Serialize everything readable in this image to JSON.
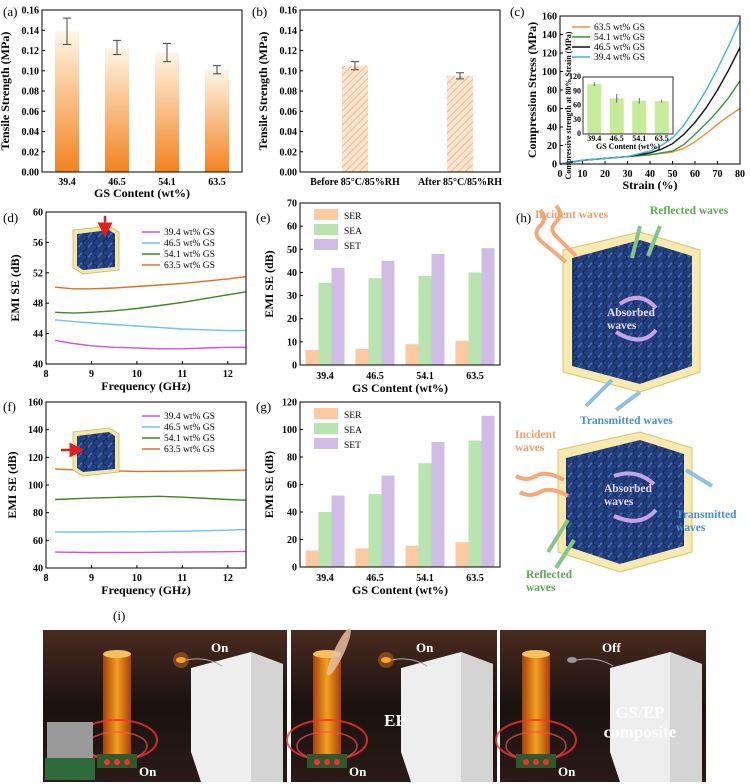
{
  "panel_labels": {
    "a": "(a)",
    "b": "(b)",
    "c": "(c)",
    "d": "(d)",
    "e": "(e)",
    "f": "(f)",
    "g": "(g)",
    "h": "(h)",
    "i": "(i)"
  },
  "colors": {
    "orange": "#f08a3a",
    "green": "#2e9a2e",
    "black": "#111111",
    "sky": "#3fb4e8",
    "purple": "#cc55dd",
    "light_blue": "#6fc3ee",
    "dark_green": "#3a8a1a",
    "dark_orange": "#e0701e",
    "ser": "#fcc9a0",
    "sea": "#b8e4b0",
    "set": "#cfbde6"
  },
  "chart_data": [
    {
      "id": "a",
      "type": "bar",
      "title": "",
      "categories": [
        "39.4",
        "46.5",
        "54.1",
        "63.5"
      ],
      "values": [
        0.139,
        0.123,
        0.118,
        0.101
      ],
      "errors": [
        0.013,
        0.007,
        0.009,
        0.004
      ],
      "xlabel": "GS Content (wt%)",
      "ylabel": "Tensile Strength (MPa)",
      "ylim": [
        0,
        0.16
      ],
      "yticks": [
        "0.00",
        "0.02",
        "0.04",
        "0.06",
        "0.08",
        "0.10",
        "0.12",
        "0.14",
        "0.16"
      ]
    },
    {
      "id": "b",
      "type": "bar",
      "title": "",
      "categories": [
        "Before 85°C/85%RH",
        "After 85°C/85%RH"
      ],
      "values": [
        0.105,
        0.095
      ],
      "errors": [
        0.004,
        0.003
      ],
      "xlabel": "",
      "ylabel": "Tensile Strength (MPa)",
      "ylim": [
        0,
        0.16
      ],
      "yticks": [
        "0.00",
        "0.02",
        "0.04",
        "0.06",
        "0.08",
        "0.10",
        "0.12",
        "0.14",
        "0.16"
      ]
    },
    {
      "id": "c",
      "type": "line",
      "title": "",
      "xlabel": "Strain (%)",
      "ylabel": "Compression Stress (MPa)",
      "xlim": [
        0,
        80
      ],
      "ylim": [
        0,
        160
      ],
      "xticks": [
        "0",
        "10",
        "20",
        "30",
        "40",
        "50",
        "60",
        "70",
        "80"
      ],
      "yticks": [
        "0",
        "20",
        "40",
        "60",
        "80",
        "100",
        "120",
        "140",
        "160"
      ],
      "series": [
        {
          "name": "63.5 wt% GS",
          "color": "#f08a3a",
          "x": [
            0,
            10,
            20,
            30,
            40,
            50,
            55,
            60,
            65,
            70,
            75,
            80
          ],
          "y": [
            0,
            4,
            6,
            8,
            10,
            13,
            17,
            24,
            33,
            43,
            52,
            60
          ]
        },
        {
          "name": "54.1 wt% GS",
          "color": "#2e9a2e",
          "x": [
            0,
            10,
            20,
            30,
            40,
            50,
            55,
            60,
            65,
            70,
            75,
            80
          ],
          "y": [
            0,
            4,
            6,
            8,
            10,
            14,
            21,
            32,
            44,
            57,
            72,
            90
          ]
        },
        {
          "name": "46.5 wt% GS",
          "color": "#111111",
          "x": [
            0,
            10,
            20,
            30,
            40,
            45,
            50,
            55,
            60,
            65,
            70,
            75,
            80
          ],
          "y": [
            0,
            4,
            6,
            8,
            12,
            16,
            22,
            32,
            45,
            61,
            80,
            102,
            126
          ]
        },
        {
          "name": "39.4 wt% GS",
          "color": "#3fb4e8",
          "x": [
            0,
            10,
            20,
            30,
            40,
            45,
            50,
            55,
            60,
            65,
            70,
            75,
            80
          ],
          "y": [
            0,
            4,
            6,
            8,
            14,
            20,
            28,
            42,
            60,
            80,
            103,
            128,
            155
          ]
        }
      ],
      "inset": {
        "type": "bar",
        "categories": [
          "39.4",
          "46.5",
          "54.1",
          "63.5"
        ],
        "values": [
          105,
          75,
          70,
          69
        ],
        "errors": [
          4,
          9,
          6,
          3
        ],
        "xlabel": "GS Content (wt%)",
        "ylabel": "Compressive strength at 80% Strain (MPa)",
        "ylim": [
          0,
          120
        ],
        "yticks": [
          "0",
          "15",
          "30",
          "45",
          "60",
          "75",
          "90",
          "105",
          "120"
        ]
      }
    },
    {
      "id": "d",
      "type": "line",
      "title": "",
      "xlabel": "Frequency (GHz)",
      "ylabel": "EMI SE (dB)",
      "xlim": [
        8,
        12.4
      ],
      "ylim": [
        40,
        60
      ],
      "xticks": [
        "8",
        "9",
        "10",
        "11",
        "12"
      ],
      "yticks": [
        "40",
        "44",
        "48",
        "52",
        "56",
        "60"
      ],
      "series": [
        {
          "name": "39.4 wt% GS",
          "color": "#cc55dd",
          "x": [
            8.2,
            8.6,
            9,
            9.5,
            10,
            10.5,
            11,
            11.5,
            12,
            12.4
          ],
          "y": [
            43.1,
            42.7,
            42.4,
            42.2,
            42.1,
            42.0,
            42.0,
            42.1,
            42.2,
            42.2
          ]
        },
        {
          "name": "46.5 wt% GS",
          "color": "#6fc3ee",
          "x": [
            8.2,
            8.6,
            9,
            9.5,
            10,
            10.5,
            11,
            11.5,
            12,
            12.4
          ],
          "y": [
            45.8,
            45.6,
            45.4,
            45.2,
            45.0,
            44.8,
            44.6,
            44.5,
            44.4,
            44.4
          ]
        },
        {
          "name": "54.1 wt% GS",
          "color": "#3a8a1a",
          "x": [
            8.2,
            8.6,
            9,
            9.5,
            10,
            10.5,
            11,
            11.5,
            12,
            12.4
          ],
          "y": [
            46.8,
            46.7,
            46.8,
            47.0,
            47.3,
            47.7,
            48.1,
            48.6,
            49.1,
            49.5
          ]
        },
        {
          "name": "63.5 wt% GS",
          "color": "#e0701e",
          "x": [
            8.2,
            8.6,
            9,
            9.5,
            10,
            10.5,
            11,
            11.5,
            12,
            12.4
          ],
          "y": [
            50.1,
            49.9,
            49.9,
            50.0,
            50.2,
            50.4,
            50.6,
            50.9,
            51.2,
            51.5
          ]
        }
      ]
    },
    {
      "id": "e",
      "type": "bar",
      "title": "",
      "categories": [
        "39.4",
        "46.5",
        "54.1",
        "63.5"
      ],
      "series": [
        {
          "name": "SER",
          "color": "#fcc9a0",
          "values": [
            6.5,
            7,
            9,
            10.5
          ]
        },
        {
          "name": "SEA",
          "color": "#b8e4b0",
          "values": [
            35.5,
            37.5,
            38.5,
            40
          ]
        },
        {
          "name": "SET",
          "color": "#cfbde6",
          "values": [
            42,
            45,
            48,
            50.5
          ]
        }
      ],
      "xlabel": "GS Content (wt%)",
      "ylabel": "EMI SE (dB)",
      "ylim": [
        0,
        70
      ],
      "yticks": [
        "0",
        "10",
        "20",
        "30",
        "40",
        "50",
        "60",
        "70"
      ]
    },
    {
      "id": "f",
      "type": "line",
      "title": "",
      "xlabel": "Frequency (GHz)",
      "ylabel": "EMI SE (dB)",
      "xlim": [
        8,
        12.4
      ],
      "ylim": [
        40,
        160
      ],
      "xticks": [
        "8",
        "9",
        "10",
        "11",
        "12"
      ],
      "yticks": [
        "40",
        "60",
        "80",
        "100",
        "120",
        "140",
        "160"
      ],
      "series": [
        {
          "name": "39.4 wt% GS",
          "color": "#cc55dd",
          "x": [
            8.2,
            9,
            10,
            11,
            12,
            12.4
          ],
          "y": [
            51.5,
            51.2,
            51.3,
            51.5,
            51.8,
            52
          ]
        },
        {
          "name": "46.5 wt% GS",
          "color": "#6fc3ee",
          "x": [
            8.2,
            9,
            10,
            11,
            12,
            12.4
          ],
          "y": [
            66,
            66,
            66.2,
            66.6,
            67.3,
            67.8
          ]
        },
        {
          "name": "54.1 wt% GS",
          "color": "#3a8a1a",
          "x": [
            8.2,
            9,
            10,
            10.5,
            11,
            12,
            12.4
          ],
          "y": [
            89.5,
            90.5,
            91.5,
            91.8,
            91.2,
            89.5,
            89
          ]
        },
        {
          "name": "63.5 wt% GS",
          "color": "#e0701e",
          "x": [
            8.2,
            9,
            10,
            11,
            12,
            12.4
          ],
          "y": [
            111.5,
            110.5,
            109.8,
            110,
            110.5,
            110.8
          ]
        }
      ]
    },
    {
      "id": "g",
      "type": "bar",
      "title": "",
      "categories": [
        "39.4",
        "46.5",
        "54.1",
        "63.5"
      ],
      "series": [
        {
          "name": "SER",
          "color": "#fcc9a0",
          "values": [
            12,
            13.5,
            15.5,
            18
          ]
        },
        {
          "name": "SEA",
          "color": "#b8e4b0",
          "values": [
            40,
            53,
            75.5,
            92
          ]
        },
        {
          "name": "SET",
          "color": "#cfbde6",
          "values": [
            52,
            66.5,
            91,
            110
          ]
        }
      ],
      "xlabel": "GS Content (wt%)",
      "ylabel": "EMI SE (dB)",
      "ylim": [
        0,
        120
      ],
      "yticks": [
        "0",
        "20",
        "40",
        "60",
        "80",
        "100",
        "120"
      ]
    }
  ],
  "schematic_h": {
    "top": {
      "incident": "Incident waves",
      "reflected": "Reflected waves",
      "absorbed": "Absorbed\nwaves",
      "transmitted": "Transmitted waves"
    },
    "bottom": {
      "incident": "Incident\nwaves",
      "absorbed": "Absorbed\nwaves",
      "transmitted": "Transmitted\nwaves",
      "reflected": "Reflected\nwaves"
    }
  },
  "photos_i": [
    {
      "status": "On",
      "bottom": "On",
      "label": ""
    },
    {
      "status": "On",
      "bottom": "On",
      "label": "EP"
    },
    {
      "status": "Off",
      "bottom": "On",
      "label": "GS/EP\ncomposite"
    }
  ]
}
